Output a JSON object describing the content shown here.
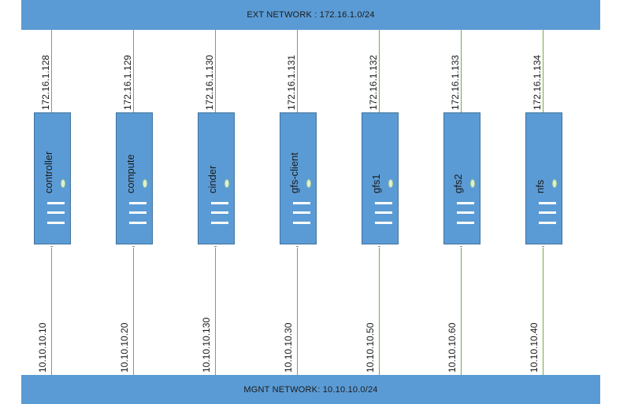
{
  "networks": {
    "ext": {
      "label": "EXT NETWORK : 172.16.1.0/24"
    },
    "mgnt": {
      "label": "MGNT NETWORK: 10.10.10.0/24"
    }
  },
  "nodes": [
    {
      "name": "controller",
      "ext_ip": "172.16.1.128",
      "mgnt_ip": "10.10.10.10"
    },
    {
      "name": "compute",
      "ext_ip": "172.16.1.129",
      "mgnt_ip": "10.10.10.20"
    },
    {
      "name": "cinder",
      "ext_ip": "172.16.1.130",
      "mgnt_ip": "10.10.10.130"
    },
    {
      "name": "gfs-client",
      "ext_ip": "172.16.1.131",
      "mgnt_ip": "10.10.10.30"
    },
    {
      "name": "gfs1",
      "ext_ip": "172.16.1.132",
      "mgnt_ip": "10.10.10.50"
    },
    {
      "name": "gfs2",
      "ext_ip": "172.16.1.133",
      "mgnt_ip": "10.10.10.60"
    },
    {
      "name": "nfs",
      "ext_ip": "172.16.1.134",
      "mgnt_ip": "10.10.10.40"
    }
  ],
  "colors": {
    "network_bar": "#5b9bd5",
    "server": "#5b9bd5",
    "wire": "#70ad47"
  }
}
